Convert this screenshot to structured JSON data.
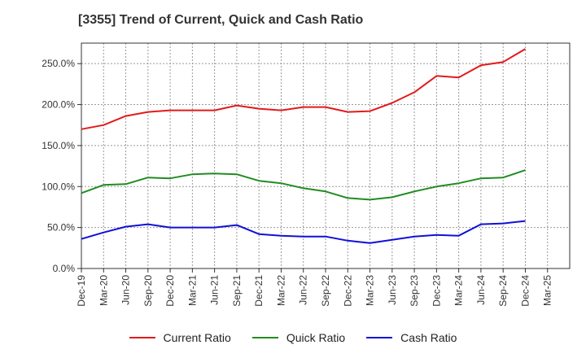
{
  "chart_data": {
    "type": "line",
    "title": "[3355]  Trend of Current, Quick and Cash Ratio",
    "xlabel": "",
    "ylabel": "",
    "ylim": [
      0,
      275
    ],
    "y_ticks": [
      0,
      50,
      100,
      150,
      200,
      250
    ],
    "y_tick_labels": [
      "0.0%",
      "50.0%",
      "100.0%",
      "150.0%",
      "200.0%",
      "250.0%"
    ],
    "x_tick_labels": [
      "Dec-19",
      "Mar-20",
      "Jun-20",
      "Sep-20",
      "Dec-20",
      "Mar-21",
      "Jun-21",
      "Sep-21",
      "Dec-21",
      "Mar-22",
      "Jun-22",
      "Sep-22",
      "Dec-22",
      "Mar-23",
      "Jun-23",
      "Sep-23",
      "Dec-23",
      "Mar-24",
      "Jun-24",
      "Sep-24",
      "Dec-24",
      "Mar-25"
    ],
    "categories": [
      "Dec-19",
      "Mar-20",
      "Jun-20",
      "Sep-20",
      "Dec-20",
      "Mar-21",
      "Jun-21",
      "Sep-21",
      "Dec-21",
      "Mar-22",
      "Jun-22",
      "Sep-22",
      "Dec-22",
      "Mar-23",
      "Jun-23",
      "Sep-23",
      "Dec-23",
      "Mar-24",
      "Jun-24",
      "Sep-24",
      "Dec-24"
    ],
    "grid": true,
    "legend_position": "bottom",
    "series": [
      {
        "name": "Current Ratio",
        "color": "#e31a1c",
        "values": [
          170,
          175,
          186,
          191,
          193,
          193,
          193,
          199,
          195,
          193,
          197,
          197,
          191,
          192,
          202,
          215,
          235,
          233,
          248,
          252,
          268
        ]
      },
      {
        "name": "Quick Ratio",
        "color": "#228b22",
        "values": [
          92,
          102,
          103,
          111,
          110,
          115,
          116,
          115,
          107,
          104,
          98,
          94,
          86,
          84,
          87,
          94,
          100,
          104,
          110,
          111,
          120
        ]
      },
      {
        "name": "Cash Ratio",
        "color": "#1010d8",
        "values": [
          36,
          44,
          51,
          54,
          50,
          50,
          50,
          53,
          42,
          40,
          39,
          39,
          34,
          31,
          35,
          39,
          41,
          40,
          54,
          55,
          58
        ]
      }
    ]
  }
}
